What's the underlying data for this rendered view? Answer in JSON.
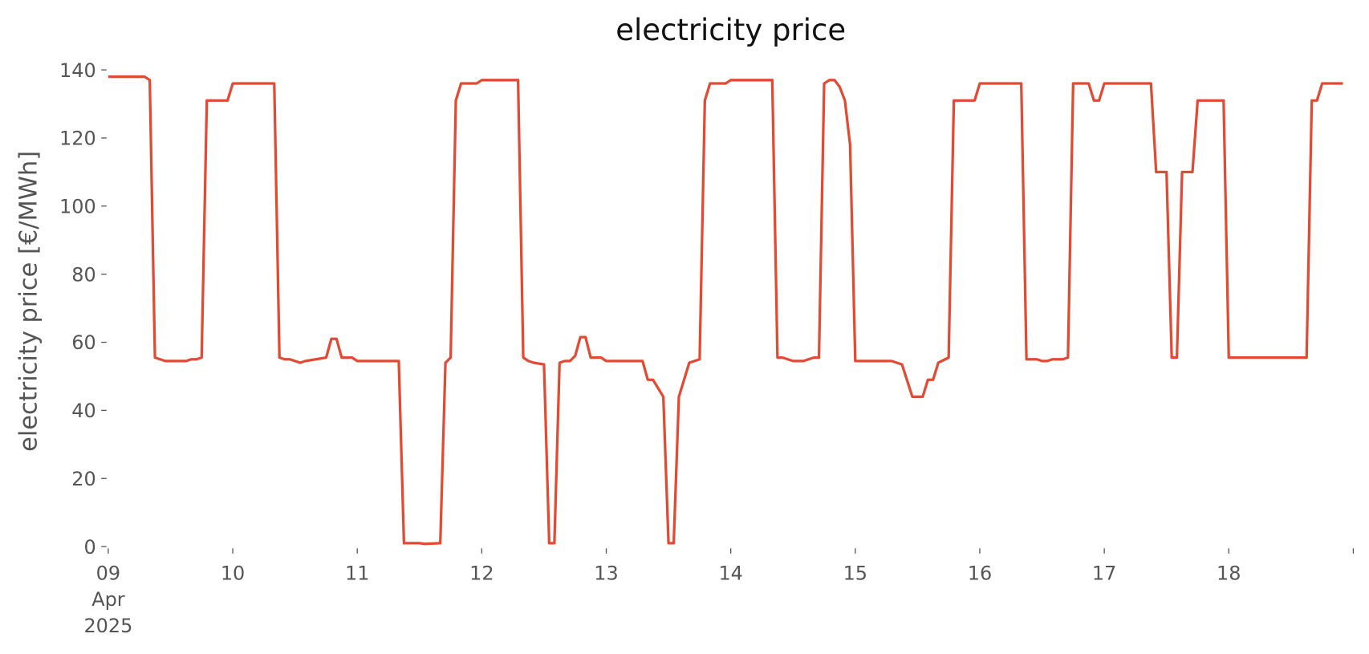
{
  "chart_data": {
    "type": "line",
    "title": "electricity price",
    "y_label": "electricity price [€/MWh]",
    "x": [
      "2025-04-09T00:00",
      "2025-04-09T07:00",
      "2025-04-09T08:00",
      "2025-04-09T09:00",
      "2025-04-09T10:00",
      "2025-04-09T11:00",
      "2025-04-09T15:00",
      "2025-04-09T16:00",
      "2025-04-09T17:00",
      "2025-04-09T18:00",
      "2025-04-09T19:00",
      "2025-04-09T23:00",
      "2025-04-10T00:00",
      "2025-04-10T08:00",
      "2025-04-10T09:00",
      "2025-04-10T10:00",
      "2025-04-10T11:00",
      "2025-04-10T13:00",
      "2025-04-10T14:00",
      "2025-04-10T16:00",
      "2025-04-10T18:00",
      "2025-04-10T19:00",
      "2025-04-10T20:00",
      "2025-04-10T21:00",
      "2025-04-10T23:00",
      "2025-04-11T00:00",
      "2025-04-11T08:00",
      "2025-04-11T09:00",
      "2025-04-11T12:00",
      "2025-04-11T13:00",
      "2025-04-11T16:00",
      "2025-04-11T17:00",
      "2025-04-11T18:00",
      "2025-04-11T19:00",
      "2025-04-11T20:00",
      "2025-04-11T23:00",
      "2025-04-12T00:00",
      "2025-04-12T07:00",
      "2025-04-12T08:00",
      "2025-04-12T09:00",
      "2025-04-12T10:00",
      "2025-04-12T12:00",
      "2025-04-12T13:00",
      "2025-04-12T14:00",
      "2025-04-12T15:00",
      "2025-04-12T16:00",
      "2025-04-12T17:00",
      "2025-04-12T18:00",
      "2025-04-12T19:00",
      "2025-04-12T20:00",
      "2025-04-12T21:00",
      "2025-04-12T23:00",
      "2025-04-13T00:00",
      "2025-04-13T07:00",
      "2025-04-13T08:00",
      "2025-04-13T09:00",
      "2025-04-13T11:00",
      "2025-04-13T12:00",
      "2025-04-13T13:00",
      "2025-04-13T14:00",
      "2025-04-13T16:00",
      "2025-04-13T18:00",
      "2025-04-13T19:00",
      "2025-04-13T20:00",
      "2025-04-13T23:00",
      "2025-04-14T00:00",
      "2025-04-14T08:00",
      "2025-04-14T09:00",
      "2025-04-14T10:00",
      "2025-04-14T12:00",
      "2025-04-14T14:00",
      "2025-04-14T16:00",
      "2025-04-14T17:00",
      "2025-04-14T18:00",
      "2025-04-14T19:00",
      "2025-04-14T20:00",
      "2025-04-14T21:00",
      "2025-04-14T22:00",
      "2025-04-14T23:00",
      "2025-04-15T00:00",
      "2025-04-15T07:00",
      "2025-04-15T09:00",
      "2025-04-15T11:00",
      "2025-04-15T13:00",
      "2025-04-15T14:00",
      "2025-04-15T15:00",
      "2025-04-15T16:00",
      "2025-04-15T18:00",
      "2025-04-15T19:00",
      "2025-04-15T23:00",
      "2025-04-16T00:00",
      "2025-04-16T08:00",
      "2025-04-16T09:00",
      "2025-04-16T11:00",
      "2025-04-16T12:00",
      "2025-04-16T13:00",
      "2025-04-16T14:00",
      "2025-04-16T16:00",
      "2025-04-16T17:00",
      "2025-04-16T18:00",
      "2025-04-16T21:00",
      "2025-04-16T22:00",
      "2025-04-16T23:00",
      "2025-04-17T00:00",
      "2025-04-17T09:00",
      "2025-04-17T10:00",
      "2025-04-17T12:00",
      "2025-04-17T13:00",
      "2025-04-17T14:00",
      "2025-04-17T15:00",
      "2025-04-17T17:00",
      "2025-04-17T18:00",
      "2025-04-17T23:00",
      "2025-04-18T00:00",
      "2025-04-18T15:00",
      "2025-04-18T16:00",
      "2025-04-18T17:00",
      "2025-04-18T18:00",
      "2025-04-18T22:00"
    ],
    "series": [
      {
        "name": "electricity price",
        "color": "#e24a33",
        "values": [
          138,
          138,
          137,
          55.5,
          55,
          54.5,
          54.5,
          55,
          55,
          55.5,
          131,
          131,
          136,
          136,
          55.5,
          55,
          55,
          54,
          54.5,
          55,
          55.5,
          61,
          61,
          55.5,
          55.5,
          54.5,
          54.5,
          1,
          1,
          0.8,
          1,
          54,
          55.5,
          131,
          136,
          136,
          137,
          137,
          55.5,
          54.5,
          54,
          53.5,
          1,
          1,
          54,
          54.5,
          54.5,
          56,
          61.5,
          61.5,
          55.5,
          55.5,
          54.5,
          54.5,
          49,
          49,
          44,
          1,
          1,
          44,
          54,
          55,
          131,
          136,
          136,
          137,
          137,
          55.5,
          55.5,
          54.5,
          54.5,
          55.5,
          55.5,
          136,
          137,
          137,
          135,
          131,
          118,
          54.5,
          54.5,
          53.5,
          44,
          44,
          49,
          49,
          54,
          55.5,
          131,
          131,
          136,
          136,
          55,
          55,
          54.5,
          54.5,
          55,
          55,
          55.5,
          136,
          136,
          131,
          131,
          136,
          136,
          110,
          110,
          55.5,
          55.5,
          110,
          110,
          131,
          131,
          55.5,
          55.5,
          131,
          131,
          136,
          136
        ]
      }
    ],
    "xlim": [
      "2025-04-09T00:00",
      "2025-04-19T00:00"
    ],
    "xticks": [
      {
        "value": "2025-04-09T00:00",
        "label": [
          "09",
          "Apr",
          "2025"
        ]
      },
      {
        "value": "2025-04-10T00:00",
        "label": "10"
      },
      {
        "value": "2025-04-11T00:00",
        "label": "11"
      },
      {
        "value": "2025-04-12T00:00",
        "label": "12"
      },
      {
        "value": "2025-04-13T00:00",
        "label": "13"
      },
      {
        "value": "2025-04-14T00:00",
        "label": "14"
      },
      {
        "value": "2025-04-15T00:00",
        "label": "15"
      },
      {
        "value": "2025-04-16T00:00",
        "label": "16"
      },
      {
        "value": "2025-04-17T00:00",
        "label": "17"
      },
      {
        "value": "2025-04-18T00:00",
        "label": "18"
      },
      {
        "value": "2025-04-19T00:00",
        "label": null
      }
    ],
    "ylim": [
      0,
      140
    ],
    "yticks": [
      0,
      20,
      40,
      60,
      80,
      100,
      120,
      140
    ],
    "grid": false
  }
}
